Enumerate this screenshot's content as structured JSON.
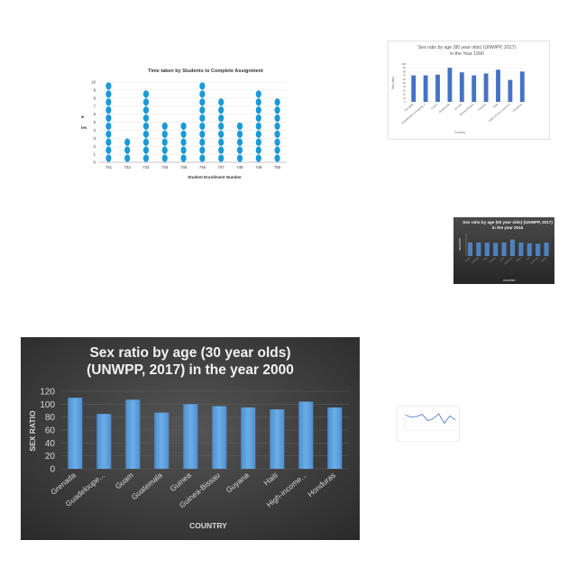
{
  "chart_data": [
    {
      "id": "dot",
      "type": "scatter",
      "title": "Time taken by Students to Complete Assignment",
      "xlabel": "Student Enrollment Number",
      "ylabel": "Time in Minutes",
      "categories": [
        "741",
        "742",
        "743",
        "744",
        "745",
        "746",
        "747",
        "748",
        "749",
        "750"
      ],
      "values": [
        10,
        3,
        9,
        5,
        5,
        10,
        8,
        5,
        9,
        8
      ],
      "ylim": [
        0,
        10
      ],
      "yticks": [
        0,
        1,
        2,
        3,
        4,
        5,
        6,
        7,
        8,
        9,
        10
      ],
      "color": "#1a9ad6"
    },
    {
      "id": "c1990",
      "type": "bar",
      "title": "Sex ratio by age (80 year olds) (UNWPP, 2017) in the Year 1990",
      "xlabel": "Country",
      "ylabel": "Sex ratio",
      "categories": [
        "Grenada",
        "Guadeloupe (Including...)",
        "Guam",
        "Guatemala",
        "Guinea",
        "Guinea-Bissau",
        "Guyana",
        "Haiti",
        "High-income countries",
        "Honduras"
      ],
      "values": [
        70,
        70,
        72,
        90,
        78,
        70,
        75,
        85,
        58,
        80
      ],
      "ylim": [
        0,
        100
      ],
      "yticks": [
        0,
        10,
        20,
        30,
        40,
        50,
        60,
        70,
        80,
        90,
        100
      ],
      "color": "#4472c4"
    },
    {
      "id": "c2015",
      "type": "bar",
      "title": "Sex ratio by age (60 year olds) (UNWPP, 2017) in the year 2015",
      "xlabel": "COUNTRY",
      "ylabel": "SEX RATIO",
      "categories": [
        "Grenada",
        "Guadeloupe",
        "Guam",
        "Guatemala",
        "Guinea",
        "Guinea-Bissau",
        "Guyana",
        "Haiti",
        "High-income",
        "Honduras"
      ],
      "values": [
        90,
        90,
        90,
        88,
        90,
        110,
        90,
        85,
        82,
        90
      ],
      "ylim": [
        0,
        150
      ],
      "color": "#4f81bd"
    },
    {
      "id": "c2000",
      "type": "bar",
      "title_lines": [
        "Sex ratio by age (30 year olds)",
        "(UNWPP, 2017) in the year 2000"
      ],
      "xlabel": "COUNTRY",
      "ylabel": "SEX RATIO",
      "categories": [
        "Grenada",
        "Guadeloupe...",
        "Guam",
        "Guatemala",
        "Guinea",
        "Guinea-Bissau",
        "Guyana",
        "Haiti",
        "High-income...",
        "Honduras"
      ],
      "values": [
        110,
        85,
        107,
        87,
        100,
        97,
        95,
        92,
        104,
        95
      ],
      "ylim": [
        0,
        120
      ],
      "yticks": [
        0,
        20,
        40,
        60,
        80,
        100,
        120
      ],
      "color": "#5b9bd5"
    },
    {
      "id": "mini",
      "type": "line",
      "title": "",
      "xlabel": "",
      "ylabel": "",
      "values": [
        55,
        48,
        50,
        58,
        35,
        42,
        60,
        25,
        52,
        38
      ],
      "ylim": [
        0,
        70
      ],
      "color": "#4472c4"
    }
  ]
}
